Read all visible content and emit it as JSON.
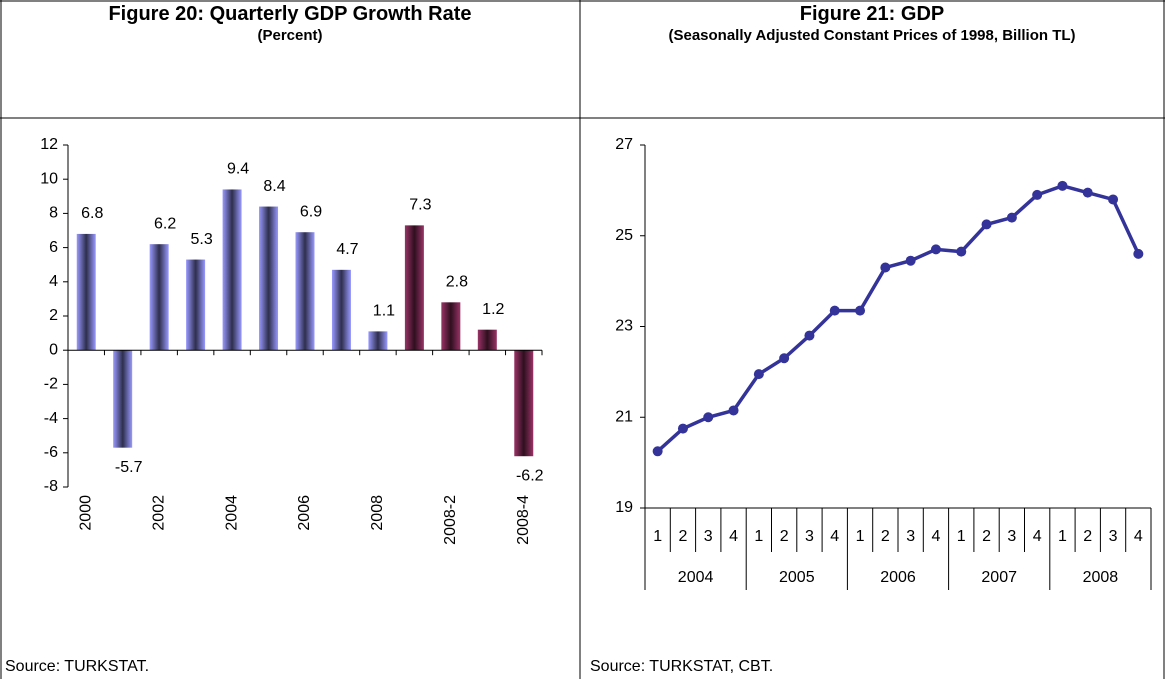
{
  "left": {
    "header": {
      "title": "Figure 20: Quarterly GDP Growth Rate",
      "subtitle": "(Percent)"
    },
    "source": "Source: TURKSTAT.",
    "chart_data": {
      "type": "bar",
      "categories": [
        "2000",
        null,
        "2002",
        null,
        "2004",
        null,
        "2006",
        null,
        "2008",
        null,
        "2008-2",
        null,
        "2008-4"
      ],
      "values": [
        6.8,
        -5.7,
        6.2,
        5.3,
        9.4,
        8.4,
        6.9,
        4.7,
        1.1,
        7.3,
        2.8,
        1.2,
        -6.2
      ],
      "colors": [
        "#9999ff",
        "#9999ff",
        "#9999ff",
        "#9999ff",
        "#9999ff",
        "#9999ff",
        "#9999ff",
        "#9999ff",
        "#9999ff",
        "#993366",
        "#993366",
        "#993366",
        "#993366"
      ],
      "ylim": [
        -8,
        12
      ],
      "yticks": [
        -8,
        -6,
        -4,
        -2,
        0,
        2,
        4,
        6,
        8,
        10,
        12
      ]
    }
  },
  "right": {
    "header": {
      "title": "Figure 21: GDP",
      "subtitle": "(Seasonally Adjusted Constant Prices of 1998, Billion TL)"
    },
    "source": "Source: TURKSTAT, CBT.",
    "chart_data": {
      "type": "line",
      "categories": [
        "1",
        "2",
        "3",
        "4",
        "1",
        "2",
        "3",
        "4",
        "1",
        "2",
        "3",
        "4",
        "1",
        "2",
        "3",
        "4",
        "1",
        "2",
        "3",
        "4"
      ],
      "groups": [
        "2004",
        "2005",
        "2006",
        "2007",
        "2008"
      ],
      "series": [
        {
          "name": "GDP",
          "color": "#333399",
          "values": [
            20.25,
            20.75,
            21.0,
            21.15,
            21.95,
            22.3,
            22.8,
            23.35,
            23.35,
            24.3,
            24.45,
            24.7,
            24.65,
            25.25,
            25.4,
            25.9,
            26.1,
            25.95,
            25.8,
            24.6
          ]
        }
      ],
      "ylim": [
        19,
        27
      ],
      "yticks": [
        19,
        21,
        23,
        25,
        27
      ]
    }
  }
}
